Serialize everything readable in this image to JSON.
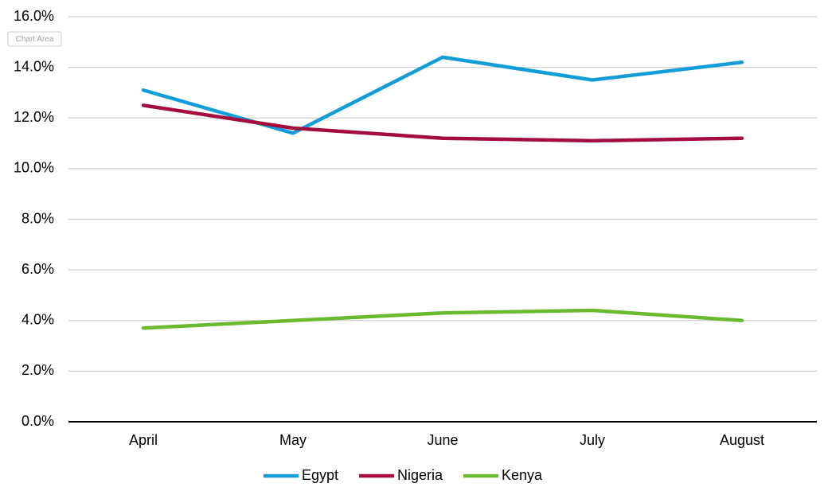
{
  "tooltip": "Chart Area",
  "chart_data": {
    "type": "line",
    "categories": [
      "April",
      "May",
      "June",
      "July",
      "August"
    ],
    "series": [
      {
        "name": "Egypt",
        "color": "#139dd8",
        "values": [
          13.1,
          11.4,
          14.4,
          13.5,
          14.2
        ]
      },
      {
        "name": "Nigeria",
        "color": "#a50d3d",
        "values": [
          12.5,
          11.6,
          11.2,
          11.1,
          11.2
        ]
      },
      {
        "name": "Kenya",
        "color": "#6ab92f",
        "values": [
          3.7,
          4.0,
          4.3,
          4.4,
          4.0
        ]
      }
    ],
    "ylim": [
      0,
      16
    ],
    "yticks": [
      {
        "value": 0,
        "label": "0.0%"
      },
      {
        "value": 2,
        "label": "2.0%"
      },
      {
        "value": 4,
        "label": "4.0%"
      },
      {
        "value": 6,
        "label": "6.0%"
      },
      {
        "value": 8,
        "label": "8.0%"
      },
      {
        "value": 10,
        "label": "10.0%"
      },
      {
        "value": 12,
        "label": "12.0%"
      },
      {
        "value": 14,
        "label": "14.0%"
      },
      {
        "value": 16,
        "label": "16.0%"
      }
    ],
    "grid": true,
    "legend": "bottom"
  }
}
